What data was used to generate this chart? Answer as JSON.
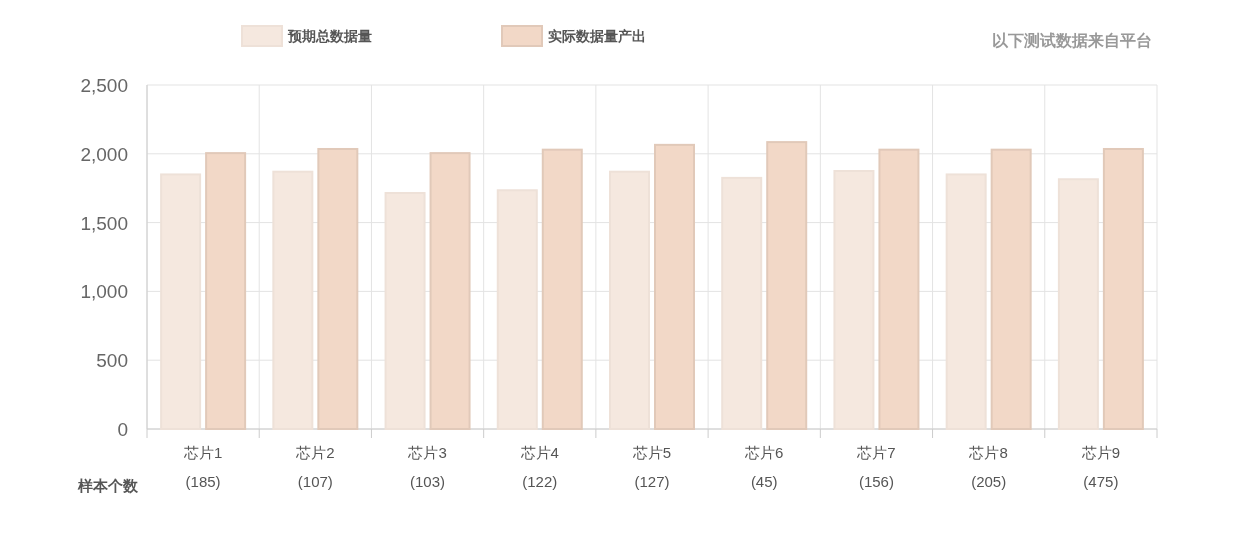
{
  "chart_data": {
    "type": "bar",
    "categories": [
      "芯片1\n(185)",
      "芯片2\n(107)",
      "芯片3\n(103)",
      "芯片4\n(122)",
      "芯片5\n(127)",
      "芯片6\n(45)",
      "芯片7\n(156)",
      "芯片8\n(205)",
      "芯片9\n(475)"
    ],
    "series": [
      {
        "name": "预期总数据量",
        "color": "#f5e8df",
        "values": [
          1850,
          1870,
          1715,
          1735,
          1870,
          1825,
          1875,
          1850,
          1815
        ]
      },
      {
        "name": "实际数据量产出",
        "color": "#f2d8c7",
        "values": [
          2005,
          2035,
          2005,
          2030,
          2065,
          2085,
          2030,
          2030,
          2035
        ]
      }
    ],
    "ylim": [
      0,
      2500
    ],
    "yticks": [
      {
        "value": 0,
        "label": "0"
      },
      {
        "value": 500,
        "label": "500"
      },
      {
        "value": 1000,
        "label": "1,000"
      },
      {
        "value": 1500,
        "label": "1,500"
      },
      {
        "value": 2000,
        "label": "2,000"
      },
      {
        "value": 2500,
        "label": "2,500"
      }
    ],
    "annotations": [
      "以下测试数据来自平台",
      "样本个数"
    ],
    "grid": true,
    "legend": "top"
  }
}
